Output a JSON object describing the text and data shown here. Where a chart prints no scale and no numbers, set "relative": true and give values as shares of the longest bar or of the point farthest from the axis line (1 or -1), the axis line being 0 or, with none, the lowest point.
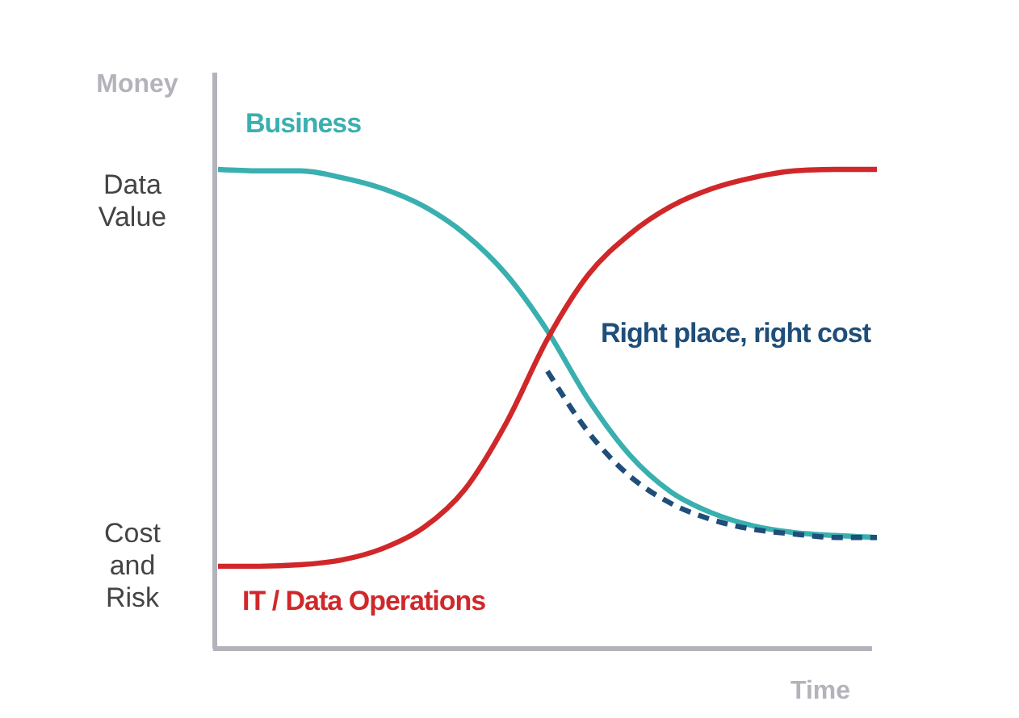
{
  "chart_data": {
    "type": "line",
    "relative": true,
    "ylabel": "Money",
    "xlabel": "Time",
    "marker": "none",
    "categories": [
      null,
      null,
      null,
      null,
      null,
      null,
      null,
      null,
      null,
      null,
      null,
      null,
      null,
      null,
      null,
      null,
      null
    ],
    "annotations": [
      "Data Value",
      "Cost and Risk"
    ],
    "series": [
      {
        "name": "Business",
        "color": "#3aafb0",
        "line_style": "solid",
        "values": [
          1.0,
          0.997,
          0.997,
          0.983,
          0.96,
          0.923,
          0.865,
          0.781,
          0.663,
          0.519,
          0.404,
          0.327,
          0.283,
          0.256,
          0.242,
          0.236,
          0.232
        ]
      },
      {
        "name": "IT / Data Operations",
        "color": "#d0282a",
        "line_style": "solid",
        "values": [
          0.172,
          0.172,
          0.175,
          0.185,
          0.209,
          0.253,
          0.333,
          0.471,
          0.646,
          0.781,
          0.865,
          0.923,
          0.96,
          0.983,
          0.997,
          1.0,
          1.0
        ]
      },
      {
        "name": "Right place, right cost",
        "color": "#1f4e79",
        "line_style": "dashed",
        "values": [
          null,
          null,
          null,
          null,
          null,
          null,
          null,
          null,
          0.579,
          0.451,
          0.36,
          0.303,
          0.269,
          0.249,
          0.239,
          0.232,
          0.232
        ]
      }
    ]
  }
}
